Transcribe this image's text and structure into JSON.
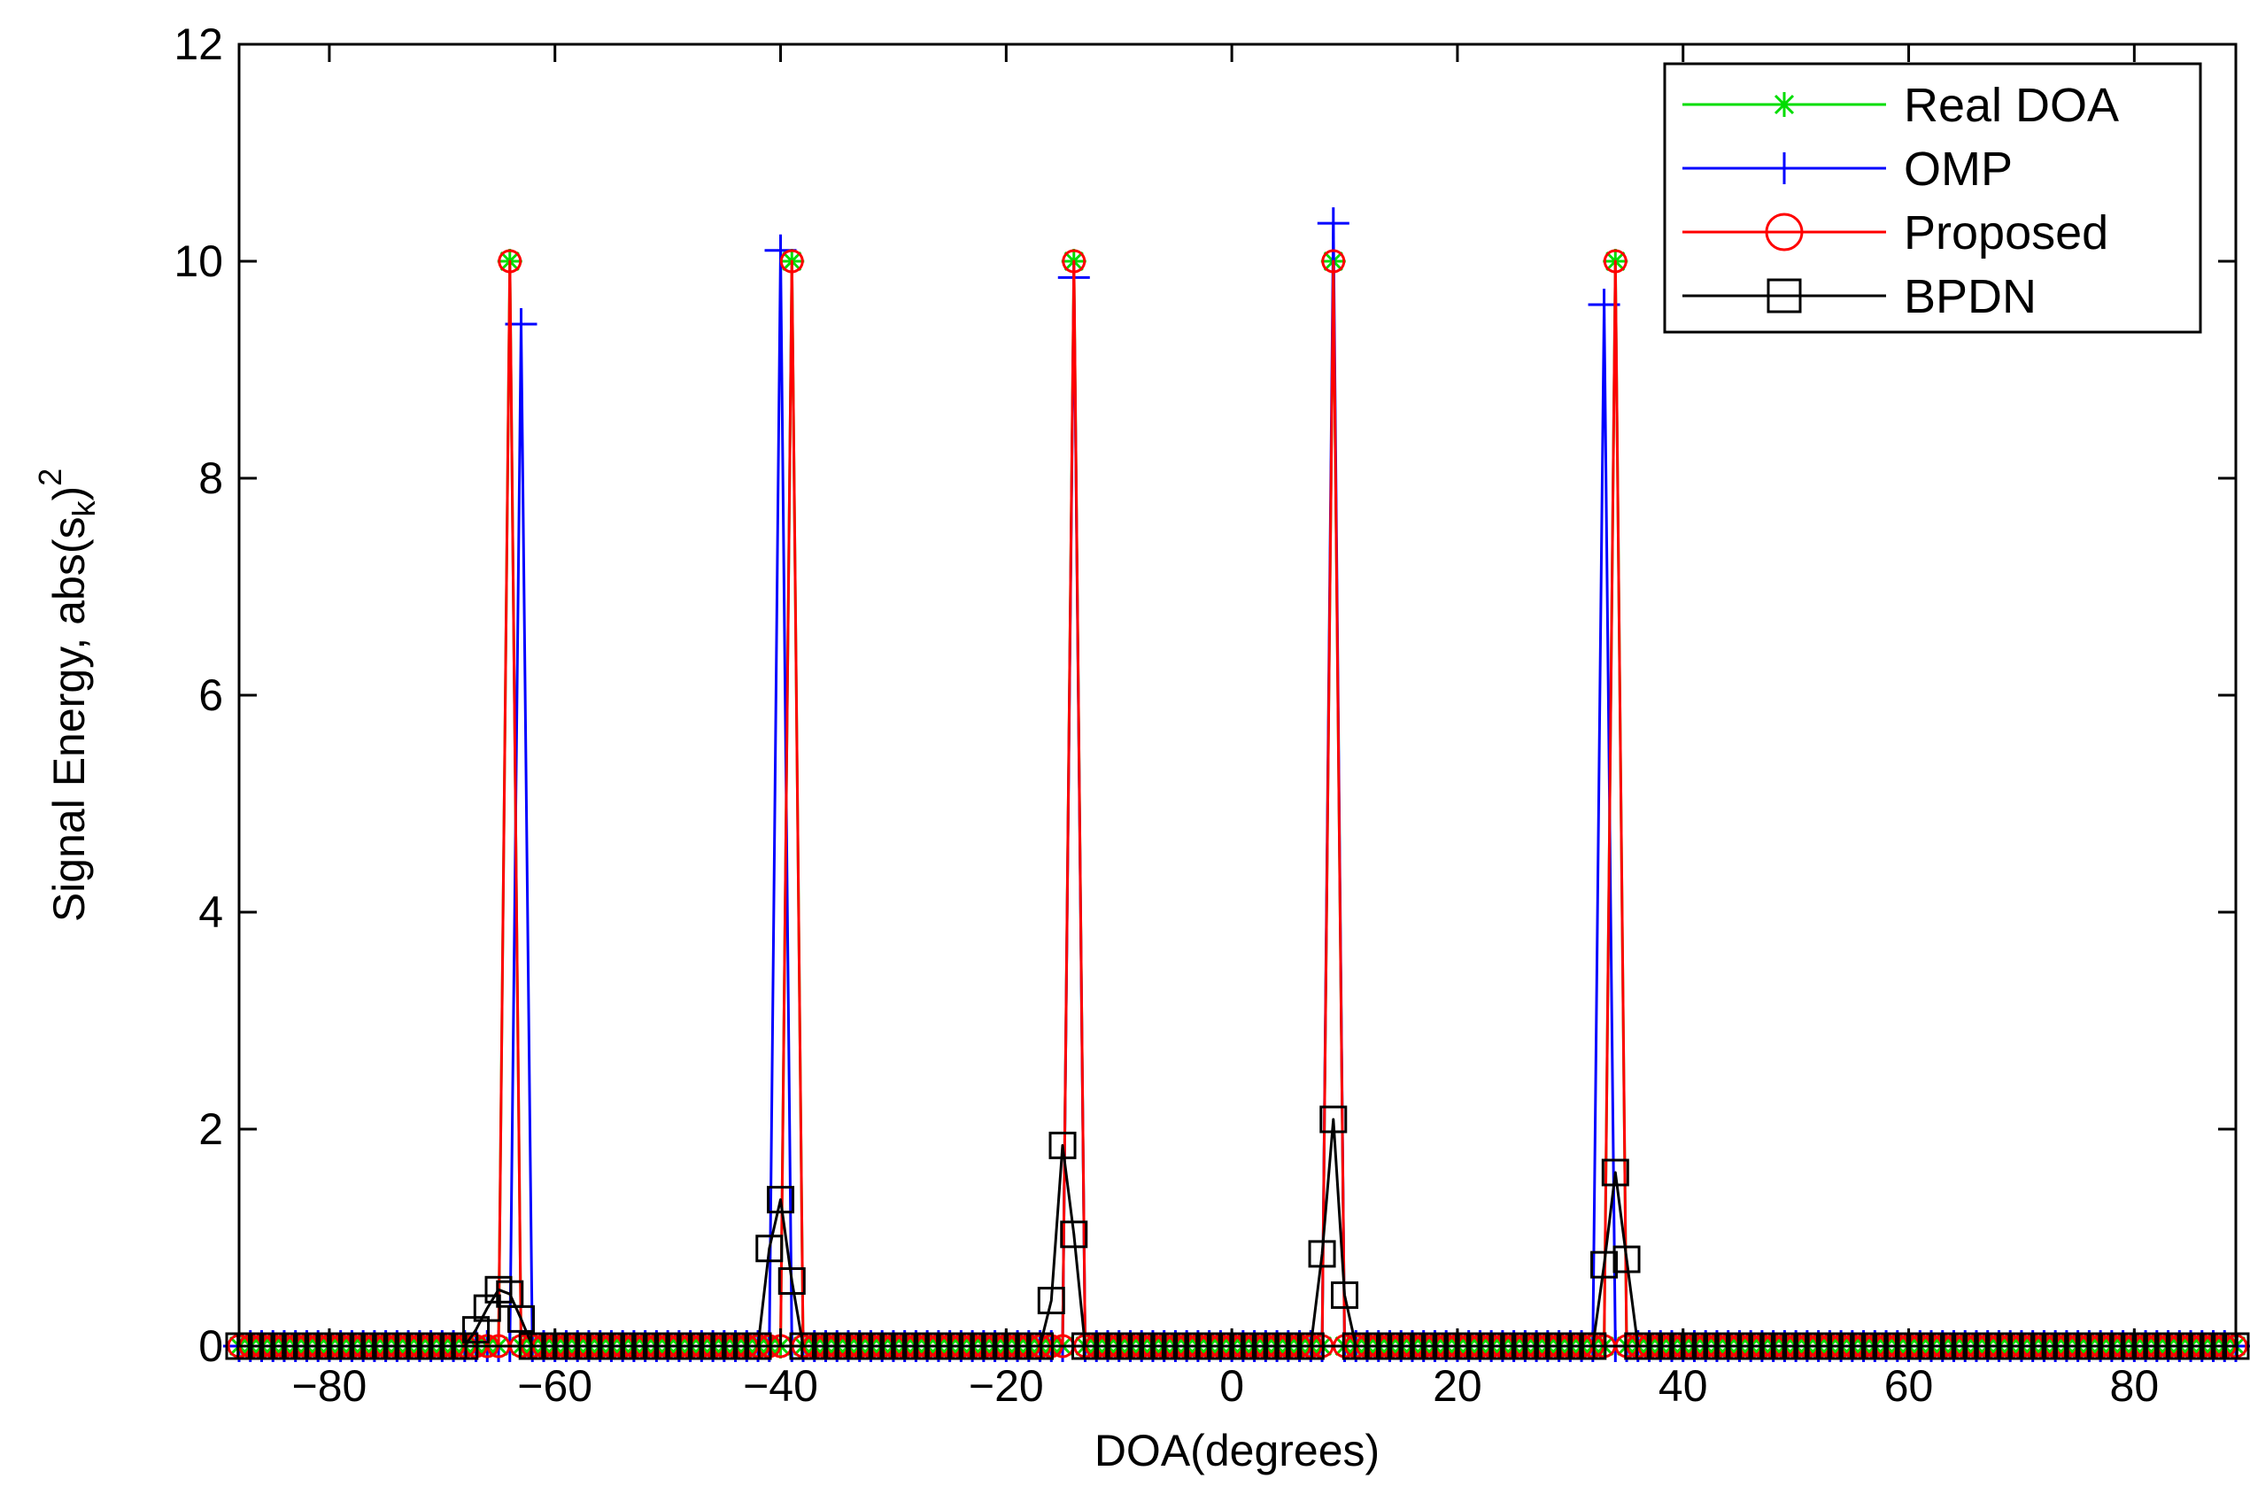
{
  "chart_data": {
    "type": "line",
    "title": "",
    "xlabel": "DOA(degrees)",
    "ylabel_main": "Signal Energy, abs(s",
    "ylabel_sub": "k",
    "ylabel_close": ")",
    "ylabel_sup": "2",
    "xlim": [
      -88,
      89
    ],
    "ylim": [
      0,
      12
    ],
    "xticks": [
      -80,
      -60,
      -40,
      -20,
      0,
      20,
      40,
      60,
      80
    ],
    "xtick_labels": [
      "−80",
      "−60",
      "−40",
      "−20",
      "0",
      "20",
      "40",
      "60",
      "80"
    ],
    "yticks": [
      0,
      2,
      4,
      6,
      8,
      10,
      12
    ],
    "ytick_labels": [
      "0",
      "2",
      "4",
      "6",
      "8",
      "10",
      "12"
    ],
    "grid": false,
    "legend_position": "top-right",
    "grid_step": 1,
    "series": [
      {
        "name": "Real DOA",
        "color": "#00dd00",
        "marker": "asterisk",
        "peaks": [
          [
            -64,
            10
          ],
          [
            -39,
            10
          ],
          [
            -14,
            10
          ],
          [
            9,
            10
          ],
          [
            34,
            10
          ]
        ]
      },
      {
        "name": "OMP",
        "color": "#0000ff",
        "marker": "plus",
        "peaks": [
          [
            -63,
            9.42
          ],
          [
            -40,
            10.1
          ],
          [
            -14,
            9.85
          ],
          [
            9,
            10.35
          ],
          [
            33,
            9.6
          ]
        ]
      },
      {
        "name": "Proposed",
        "color": "#ff0000",
        "marker": "circle",
        "peaks": [
          [
            -64,
            10
          ],
          [
            -39,
            10
          ],
          [
            -14,
            10
          ],
          [
            9,
            10
          ],
          [
            34,
            10
          ]
        ]
      },
      {
        "name": "BPDN",
        "color": "#000000",
        "marker": "square",
        "peaks": [
          [
            -67,
            0.15
          ],
          [
            -66,
            0.35
          ],
          [
            -65,
            0.52
          ],
          [
            -64,
            0.48
          ],
          [
            -63,
            0.25
          ],
          [
            -41,
            0.9
          ],
          [
            -40,
            1.35
          ],
          [
            -39,
            0.6
          ],
          [
            -16,
            0.42
          ],
          [
            -15,
            1.85
          ],
          [
            -14,
            1.03
          ],
          [
            8,
            0.85
          ],
          [
            9,
            2.09
          ],
          [
            10,
            0.47
          ],
          [
            33,
            0.75
          ],
          [
            34,
            1.6
          ],
          [
            35,
            0.8
          ]
        ]
      }
    ]
  }
}
